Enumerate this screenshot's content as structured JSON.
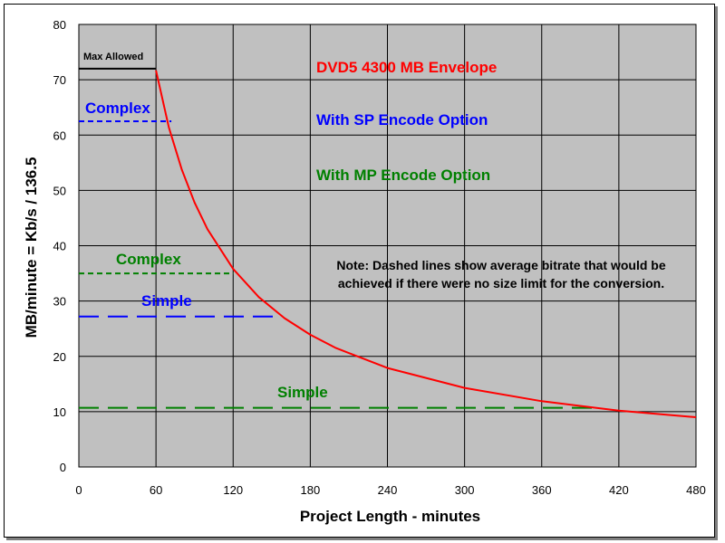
{
  "chart_data": {
    "type": "line",
    "title": "",
    "xlabel": "Project Length - minutes",
    "ylabel": "MB/minute = Kb/s / 136.5",
    "xlim": [
      0,
      480
    ],
    "ylim": [
      0,
      80
    ],
    "x_ticks": [
      0,
      60,
      120,
      180,
      240,
      300,
      360,
      420,
      480
    ],
    "y_ticks": [
      0,
      10,
      20,
      30,
      40,
      50,
      60,
      70,
      80
    ],
    "grid": true,
    "legend": "none",
    "colors": {
      "plot_bg": "#c0c0c0",
      "envelope": "#ff0000",
      "max_allowed": "#000000",
      "sp": "#0000ff",
      "mp": "#008000"
    },
    "series": [
      {
        "name": "DVD5 4300 MB Envelope",
        "color": "#ff0000",
        "x": [
          60,
          70,
          80,
          90,
          100,
          120,
          140,
          160,
          180,
          200,
          240,
          300,
          360,
          420,
          480
        ],
        "values": [
          71.7,
          61.4,
          53.8,
          47.8,
          43.0,
          35.8,
          30.7,
          26.9,
          23.9,
          21.5,
          17.9,
          14.3,
          11.9,
          10.2,
          9.0
        ]
      },
      {
        "name": "Max Allowed",
        "color": "#000000",
        "x": [
          0,
          60
        ],
        "values": [
          72,
          72
        ]
      },
      {
        "name": "With SP Encode Option - Complex",
        "color": "#0000ff",
        "dash": "short",
        "x": [
          0,
          72
        ],
        "values": [
          62.5,
          62.5
        ]
      },
      {
        "name": "With SP Encode Option - Simple",
        "color": "#0000ff",
        "dash": "long",
        "x": [
          0,
          155
        ],
        "values": [
          27.2,
          27.2
        ]
      },
      {
        "name": "With MP Encode Option - Complex",
        "color": "#008000",
        "dash": "short",
        "x": [
          0,
          120
        ],
        "values": [
          35,
          35
        ]
      },
      {
        "name": "With MP Encode Option - Simple",
        "color": "#008000",
        "dash": "long",
        "x": [
          0,
          400
        ],
        "values": [
          10.7,
          10.7
        ]
      }
    ],
    "annotations": {
      "max_allowed": "Max Allowed",
      "envelope": "DVD5 4300 MB Envelope",
      "sp_option": "With SP Encode Option",
      "mp_option": "With MP Encode Option",
      "sp_complex": "Complex",
      "sp_simple": "Simple",
      "mp_complex": "Complex",
      "mp_simple": "Simple",
      "note_line1": "Note: Dashed lines show average bitrate that would be",
      "note_line2": "achieved if there were no size limit for the conversion."
    }
  }
}
